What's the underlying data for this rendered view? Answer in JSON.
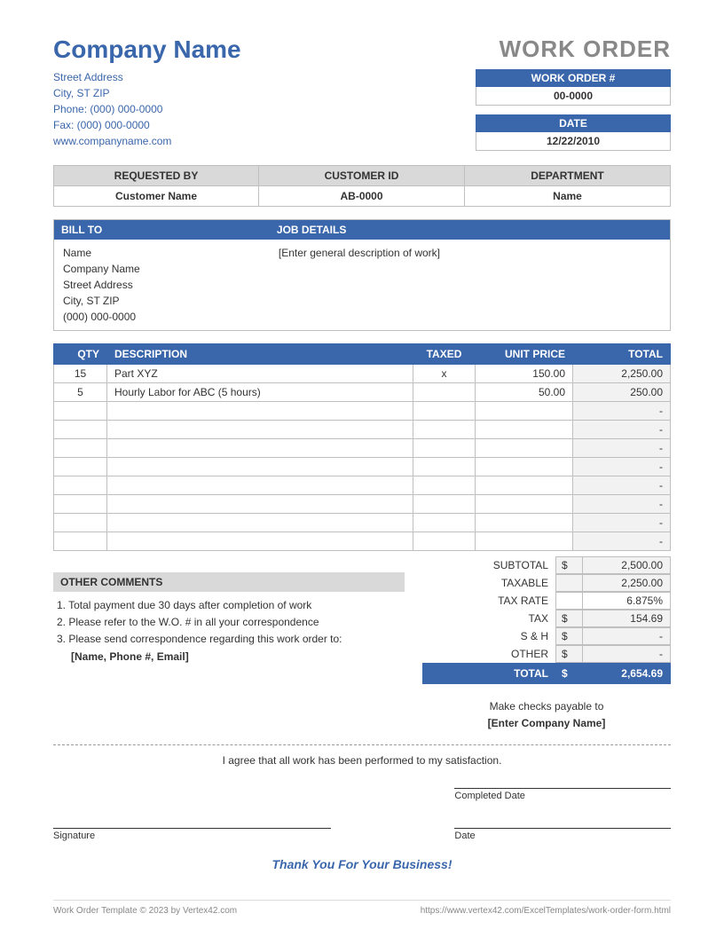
{
  "colors": {
    "brand": "#3a66ab",
    "grey_header": "#d9d9d9",
    "light_grey": "#f2f2f2",
    "border": "#bfbfbf",
    "title_grey": "#888888"
  },
  "company": {
    "name": "Company Name",
    "street": "Street Address",
    "citystzip": "City, ST  ZIP",
    "phone": "Phone: (000) 000-0000",
    "fax": "Fax: (000) 000-0000",
    "website": "www.companyname.com"
  },
  "title": "WORK ORDER",
  "wo_number_label": "WORK ORDER #",
  "wo_number": "00-0000",
  "date_label": "DATE",
  "date": "12/22/2010",
  "req": {
    "requested_by_label": "REQUESTED BY",
    "requested_by": "Customer Name",
    "customer_id_label": "CUSTOMER ID",
    "customer_id": "AB-0000",
    "department_label": "DEPARTMENT",
    "department": "Name"
  },
  "bill_to_label": "BILL TO",
  "bill_to": {
    "name": "Name",
    "company": "Company Name",
    "street": "Street Address",
    "citystzip": "City, ST  ZIP",
    "phone": "(000) 000-0000"
  },
  "job_label": "JOB DETAILS",
  "job_desc": "[Enter general description of work]",
  "columns": {
    "qty": "QTY",
    "desc": "DESCRIPTION",
    "taxed": "TAXED",
    "price": "UNIT PRICE",
    "total": "TOTAL"
  },
  "items": [
    {
      "qty": "15",
      "desc": "Part XYZ",
      "taxed": "x",
      "price": "150.00",
      "total": "2,250.00"
    },
    {
      "qty": "5",
      "desc": "Hourly Labor for ABC (5 hours)",
      "taxed": "",
      "price": "50.00",
      "total": "250.00"
    },
    {
      "qty": "",
      "desc": "",
      "taxed": "",
      "price": "",
      "total": "-"
    },
    {
      "qty": "",
      "desc": "",
      "taxed": "",
      "price": "",
      "total": "-"
    },
    {
      "qty": "",
      "desc": "",
      "taxed": "",
      "price": "",
      "total": "-"
    },
    {
      "qty": "",
      "desc": "",
      "taxed": "",
      "price": "",
      "total": "-"
    },
    {
      "qty": "",
      "desc": "",
      "taxed": "",
      "price": "",
      "total": "-"
    },
    {
      "qty": "",
      "desc": "",
      "taxed": "",
      "price": "",
      "total": "-"
    },
    {
      "qty": "",
      "desc": "",
      "taxed": "",
      "price": "",
      "total": "-"
    },
    {
      "qty": "",
      "desc": "",
      "taxed": "",
      "price": "",
      "total": "-"
    }
  ],
  "comments_label": "OTHER COMMENTS",
  "comments": [
    "1. Total payment due 30 days after completion of work",
    "2. Please refer to the W.O. # in all your correspondence",
    "3. Please send correspondence regarding this work order to:"
  ],
  "comments_bold": "[Name, Phone #, Email]",
  "totals": {
    "subtotal_label": "SUBTOTAL",
    "subtotal_cur": "$",
    "subtotal": "2,500.00",
    "taxable_label": "TAXABLE",
    "taxable_cur": "",
    "taxable": "2,250.00",
    "taxrate_label": "TAX RATE",
    "taxrate_cur": "",
    "taxrate": "6.875%",
    "tax_label": "TAX",
    "tax_cur": "$",
    "tax": "154.69",
    "sh_label": "S & H",
    "sh_cur": "$",
    "sh": "-",
    "other_label": "OTHER",
    "other_cur": "$",
    "other": "-",
    "total_label": "TOTAL",
    "total_cur": "$",
    "total": "2,654.69"
  },
  "payable_line1": "Make checks payable to",
  "payable_line2": "[Enter Company Name]",
  "agree": "I agree that all work has been performed to my satisfaction.",
  "sig": {
    "completed": "Completed Date",
    "signature": "Signature",
    "date": "Date"
  },
  "thanks": "Thank You For Your Business!",
  "footer_left": "Work Order Template © 2023 by Vertex42.com",
  "footer_right": "https://www.vertex42.com/ExcelTemplates/work-order-form.html"
}
